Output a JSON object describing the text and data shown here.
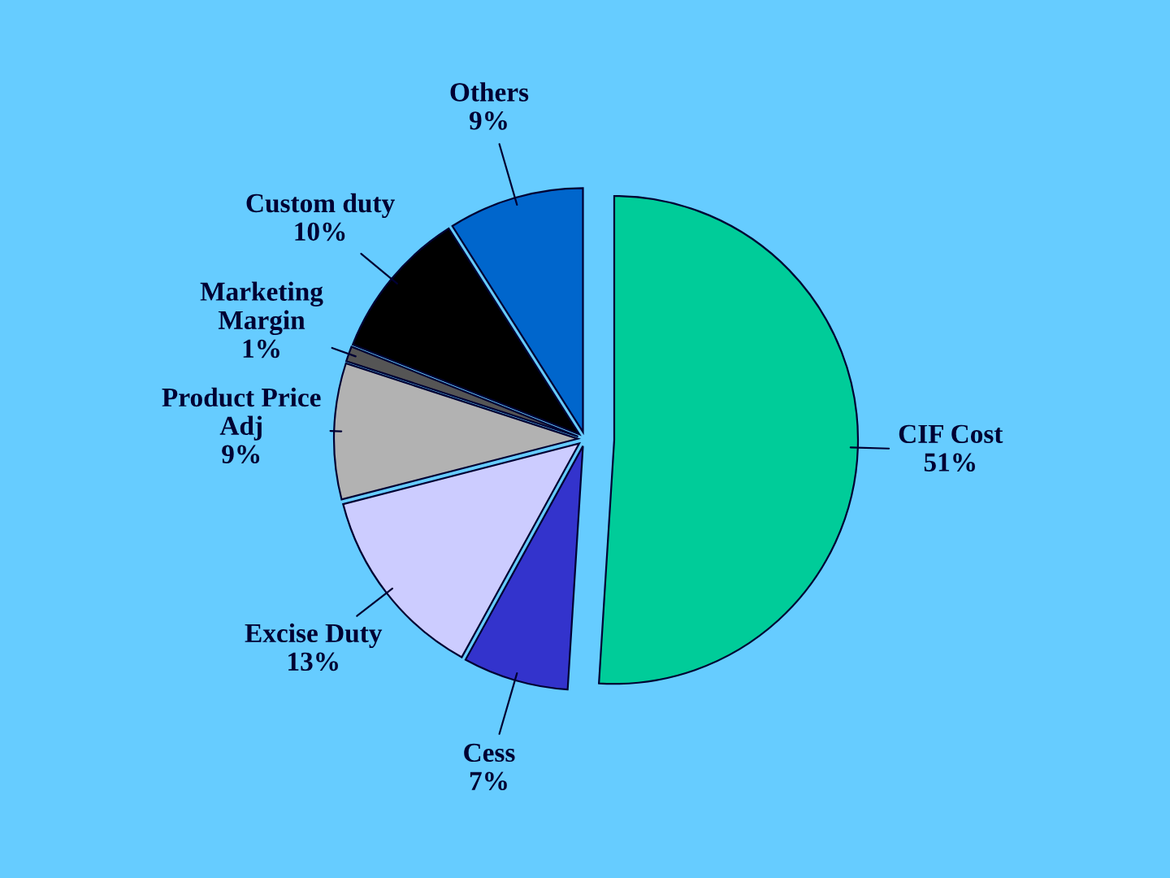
{
  "chart_data": {
    "type": "pie",
    "categories": [
      "CIF Cost",
      "Cess",
      "Excise Duty",
      "Product Price\nAdj",
      "Marketing\nMargin",
      "Custom duty",
      "Others"
    ],
    "values": [
      51,
      7,
      13,
      9,
      1,
      10,
      9
    ],
    "value_labels": [
      "51%",
      "7%",
      "13%",
      "9%",
      "1%",
      "10%",
      "9%"
    ],
    "colors": [
      "#00cc99",
      "#3333cc",
      "#ccccff",
      "#b2b2b2",
      "#555555",
      "#000000",
      "#0066cc"
    ]
  }
}
